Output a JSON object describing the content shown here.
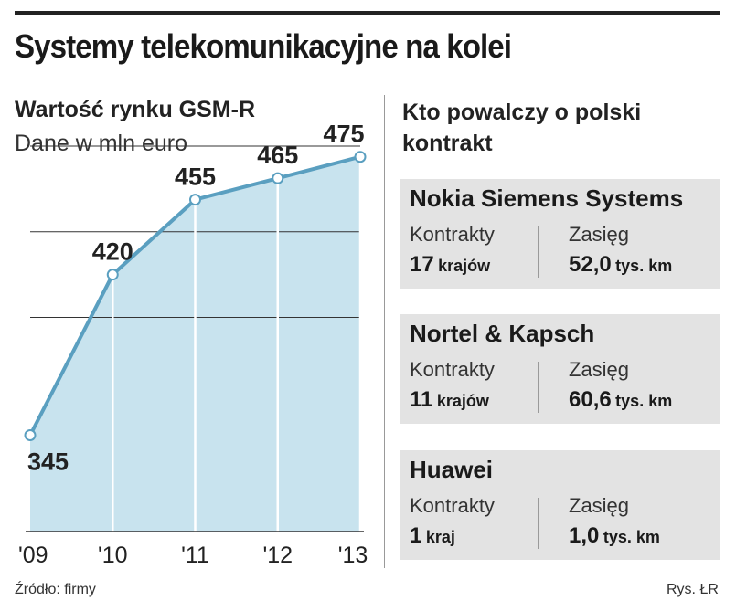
{
  "title": "Systemy telekomunikacyjne na kolei",
  "chart_data": {
    "type": "area",
    "title": "Wartość rynku GSM-R",
    "subtitle": "Dane w mln euro",
    "x": [
      "'09",
      "'10",
      "'11",
      "'12",
      "'13"
    ],
    "values": [
      345,
      420,
      455,
      465,
      475
    ],
    "value_labels": [
      "345",
      "420",
      "455",
      "465",
      "475"
    ],
    "ylim": [
      300,
      480
    ],
    "gridlines": [
      400,
      440,
      480
    ],
    "line_color": "#5a9fc0",
    "fill_color": "#c8e3ee",
    "grid_color": "#333333"
  },
  "competitors": {
    "title": "Kto powalczy o polski kontrakt",
    "contracts_label": "Kontrakty",
    "range_label": "Zasięg",
    "items": [
      {
        "name": "Nokia Siemens Systems",
        "contracts_num": "17",
        "contracts_unit": "krajów",
        "range_num": "52,0",
        "range_unit": "tys. km"
      },
      {
        "name": "Nortel & Kapsch",
        "contracts_num": "11",
        "contracts_unit": "krajów",
        "range_num": "60,6",
        "range_unit": "tys. km"
      },
      {
        "name": "Huawei",
        "contracts_num": "1",
        "contracts_unit": "kraj",
        "range_num": "1,0",
        "range_unit": "tys. km"
      }
    ]
  },
  "footer": {
    "source": "Źródło: firmy",
    "credit": "Rys. ŁR"
  }
}
